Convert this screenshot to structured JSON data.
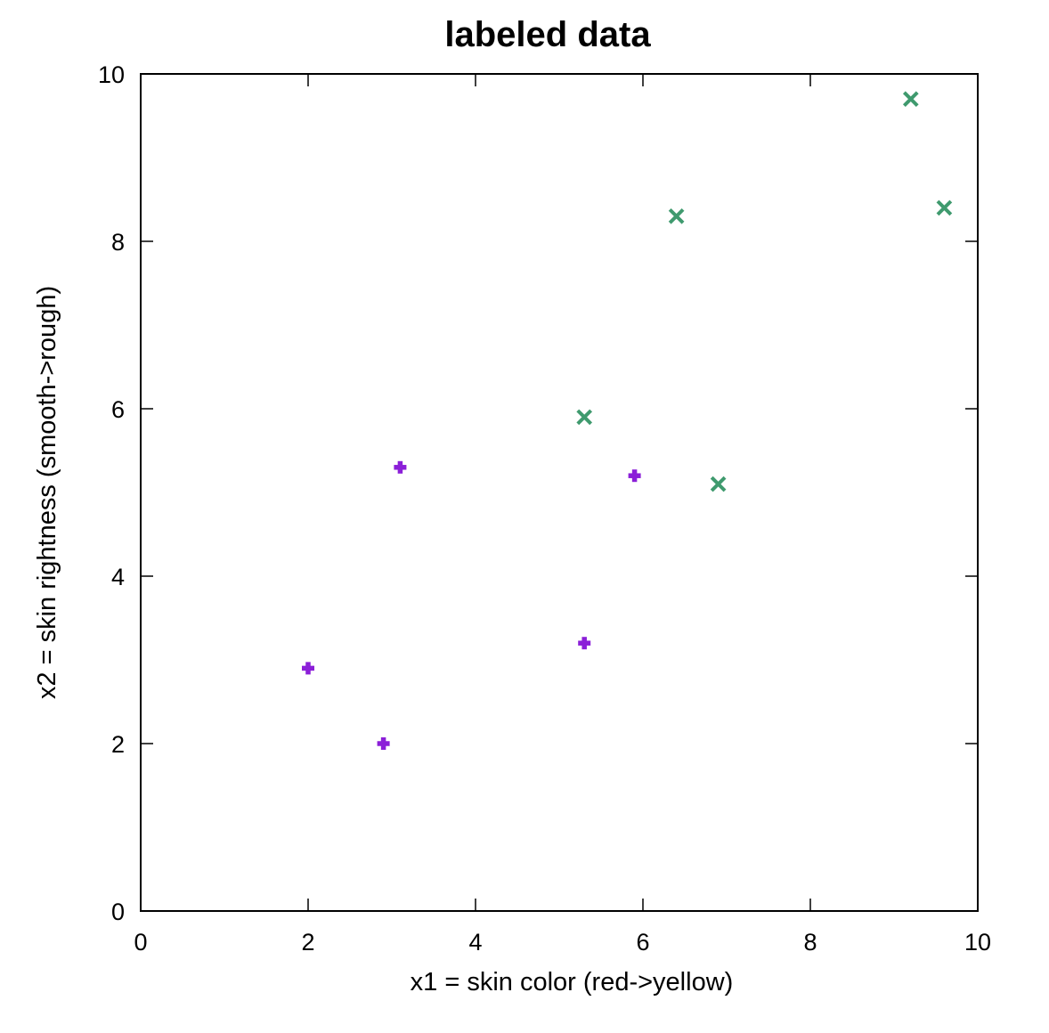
{
  "chart_data": {
    "type": "scatter",
    "title": "labeled data",
    "xlabel": "x1 = skin color (red->yellow)",
    "ylabel": "x2 = skin rightness (smooth->rough)",
    "xlim": [
      0,
      10
    ],
    "ylim": [
      0,
      10
    ],
    "xticks": [
      "0",
      "2",
      "4",
      "6",
      "8",
      "10"
    ],
    "yticks": [
      "0",
      "2",
      "4",
      "6",
      "8",
      "10"
    ],
    "grid": false,
    "legend": "none",
    "series": [
      {
        "marker": "plus",
        "color": "#8b1fd8",
        "points": [
          {
            "x": 2.0,
            "y": 2.9
          },
          {
            "x": 2.9,
            "y": 2.0
          },
          {
            "x": 3.1,
            "y": 5.3
          },
          {
            "x": 5.3,
            "y": 3.2
          },
          {
            "x": 5.9,
            "y": 5.2
          }
        ]
      },
      {
        "marker": "cross",
        "color": "#3f9a6e",
        "points": [
          {
            "x": 5.3,
            "y": 5.9
          },
          {
            "x": 6.4,
            "y": 8.3
          },
          {
            "x": 6.9,
            "y": 5.1
          },
          {
            "x": 9.2,
            "y": 9.7
          },
          {
            "x": 9.6,
            "y": 8.4
          }
        ]
      }
    ]
  }
}
